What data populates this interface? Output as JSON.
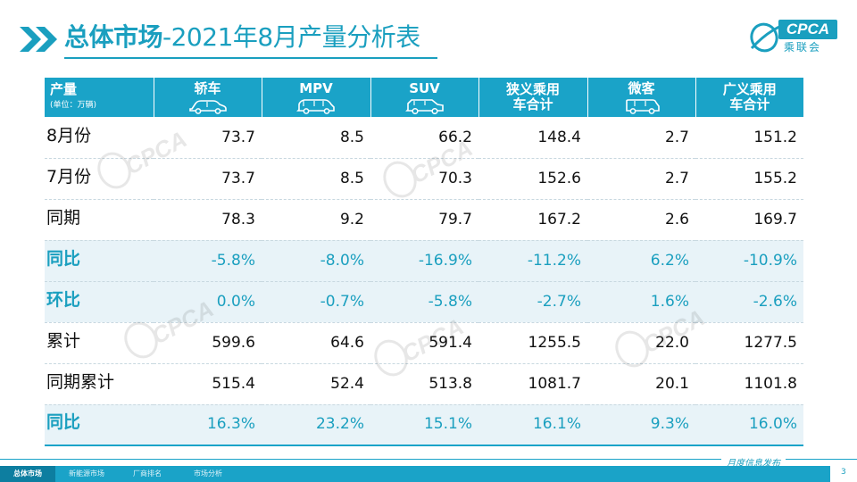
{
  "header": {
    "title_bold": "总体市场",
    "title_rest": "-2021年8月产量分析表",
    "logo_text": "CPCA",
    "logo_cn": "乘联会"
  },
  "table": {
    "corner_main": "产量",
    "corner_sub": "(单位：万辆)",
    "columns": [
      {
        "label": "轿车",
        "icon": "sedan-icon"
      },
      {
        "label": "MPV",
        "icon": "mpv-icon"
      },
      {
        "label": "SUV",
        "icon": "suv-icon"
      },
      {
        "label": "狭义乘用车合计",
        "icon": ""
      },
      {
        "label": "微客",
        "icon": "minivan-icon"
      },
      {
        "label": "广义乘用车合计",
        "icon": ""
      }
    ],
    "rows": [
      {
        "label": "8月份",
        "values": [
          "73.7",
          "8.5",
          "66.2",
          "148.4",
          "2.7",
          "151.2"
        ]
      },
      {
        "label": "7月份",
        "values": [
          "73.7",
          "8.5",
          "70.3",
          "152.6",
          "2.7",
          "155.2"
        ]
      },
      {
        "label": "同期",
        "values": [
          "78.3",
          "9.2",
          "79.7",
          "167.2",
          "2.6",
          "169.7"
        ]
      },
      {
        "label": "同比",
        "values": [
          "-5.8%",
          "-8.0%",
          "-16.9%",
          "-11.2%",
          "6.2%",
          "-10.9%"
        ]
      },
      {
        "label": "环比",
        "values": [
          "0.0%",
          "-0.7%",
          "-5.8%",
          "-2.7%",
          "1.6%",
          "-2.6%"
        ]
      },
      {
        "label": "累计",
        "values": [
          "599.6",
          "64.6",
          "591.4",
          "1255.5",
          "22.0",
          "1277.5"
        ]
      },
      {
        "label": "同期累计",
        "values": [
          "515.4",
          "52.4",
          "513.8",
          "1081.7",
          "20.1",
          "1101.8"
        ]
      },
      {
        "label": "同比",
        "values": [
          "16.3%",
          "23.2%",
          "15.1%",
          "16.1%",
          "9.3%",
          "16.0%"
        ]
      }
    ]
  },
  "footer": {
    "tabs": [
      "总体市场",
      "新能源市场",
      "厂商排名",
      "市场分析"
    ],
    "note": "月度信息发布",
    "page": "3"
  },
  "colors": {
    "accent": "#1aa3c8",
    "accent_text": "#1a9fbf",
    "pct_row_bg": "#e8f3f8"
  }
}
